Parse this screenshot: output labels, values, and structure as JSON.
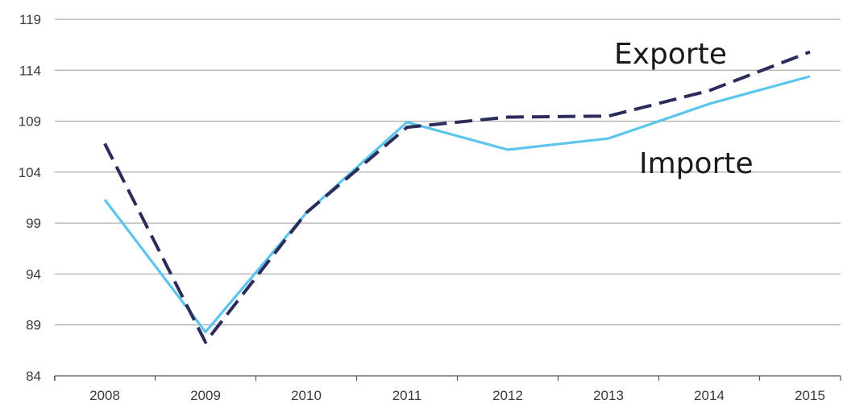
{
  "chart_data": {
    "type": "line",
    "categories": [
      "2008",
      "2009",
      "2010",
      "2011",
      "2012",
      "2013",
      "2014",
      "2015"
    ],
    "series": [
      {
        "name": "Exporte",
        "values": [
          106.8,
          87.3,
          100.0,
          108.4,
          109.4,
          109.5,
          112.0,
          115.8
        ],
        "color": "#2c2c5a",
        "style": "dashed"
      },
      {
        "name": "Importe",
        "values": [
          101.3,
          88.3,
          100.0,
          108.9,
          106.2,
          107.3,
          110.7,
          113.4
        ],
        "color": "#5bc5ef",
        "style": "solid"
      }
    ],
    "yticks": [
      "84",
      "89",
      "94",
      "99",
      "104",
      "109",
      "114",
      "119"
    ],
    "ylim": [
      84,
      119
    ],
    "grid": true,
    "labels": {
      "exporte": "Exporte",
      "importe": "Importe"
    }
  }
}
